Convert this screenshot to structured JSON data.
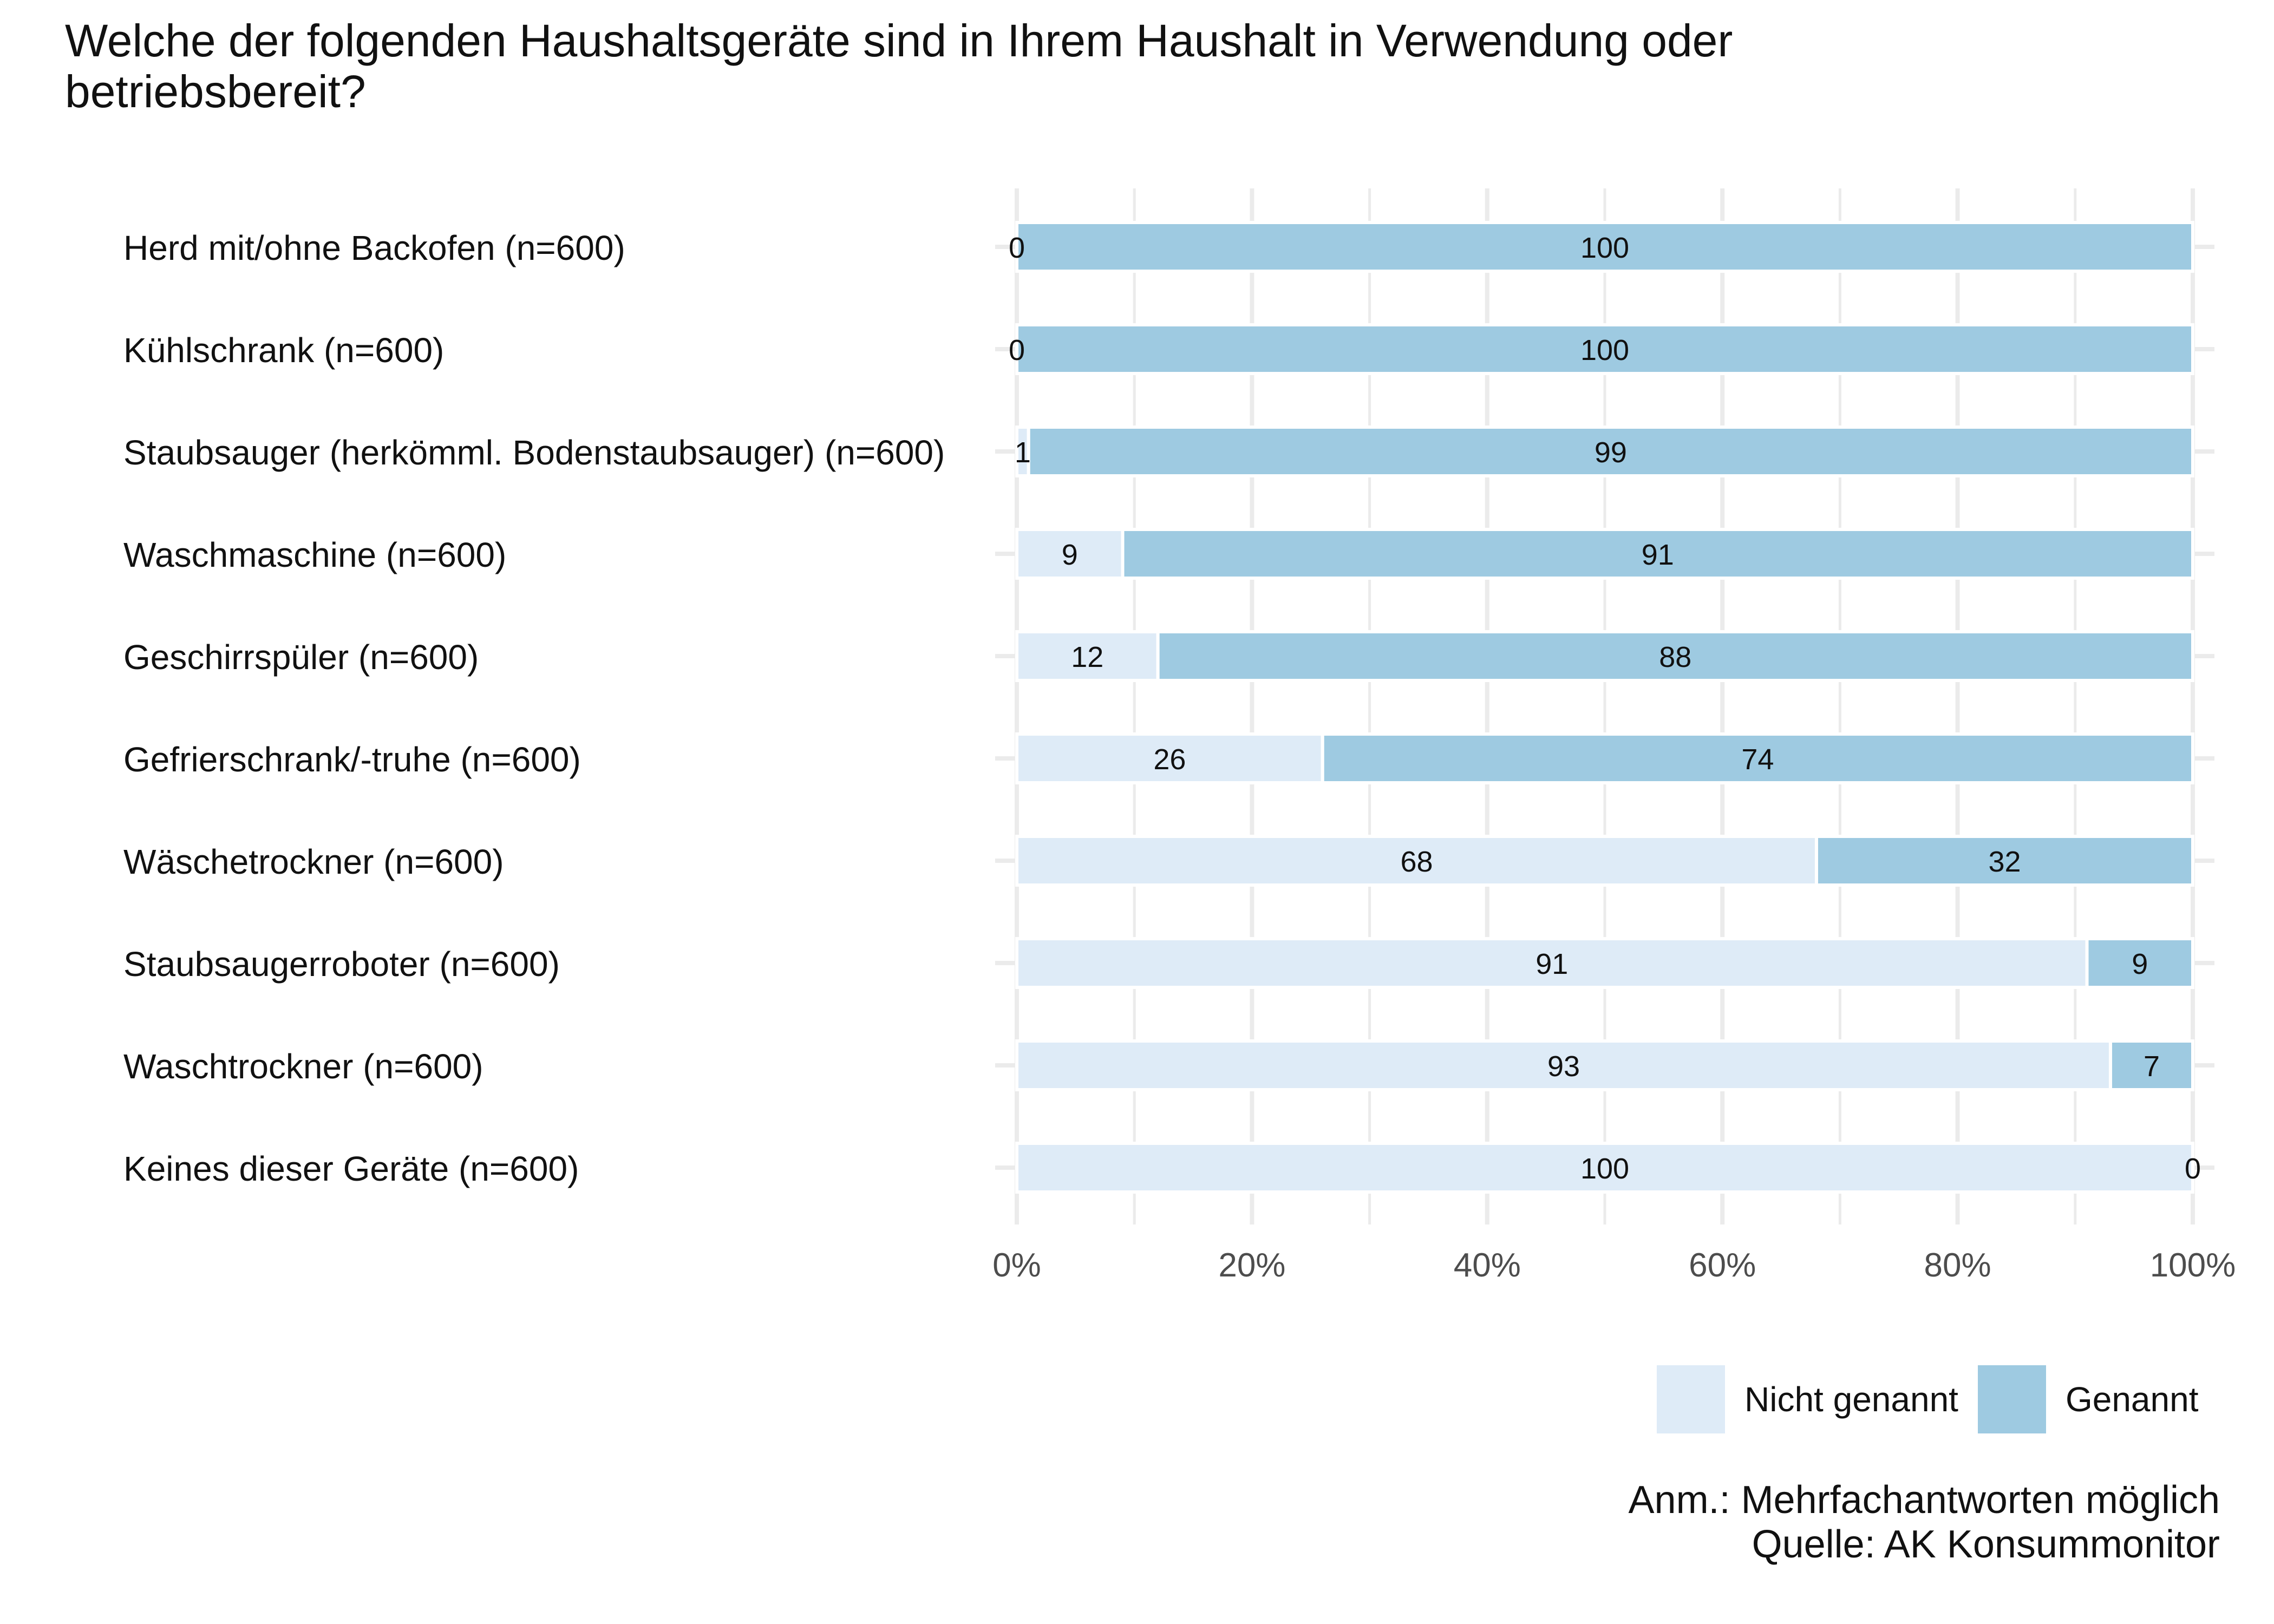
{
  "chart_data": {
    "type": "bar",
    "orientation": "horizontal",
    "stacked": true,
    "title": "Welche der folgenden Haushaltsgeräte sind in Ihrem Haushalt in Verwendung oder betriebsbereit?",
    "categories": [
      "Herd mit/ohne Backofen (n=600)",
      "Kühlschrank (n=600)",
      "Staubsauger (herkömml. Bodenstaubsauger) (n=600)",
      "Waschmaschine (n=600)",
      "Geschirrspüler (n=600)",
      "Gefrierschrank/-truhe (n=600)",
      "Wäschetrockner (n=600)",
      "Staubsaugerroboter (n=600)",
      "Waschtrockner (n=600)",
      "Keines dieser Geräte (n=600)"
    ],
    "series": [
      {
        "name": "Nicht genannt",
        "color": "#deebf7",
        "values": [
          0,
          0,
          1,
          9,
          12,
          26,
          68,
          91,
          93,
          100
        ]
      },
      {
        "name": "Genannt",
        "color": "#9ecae1",
        "values": [
          100,
          100,
          99,
          91,
          88,
          74,
          32,
          9,
          7,
          0
        ]
      }
    ],
    "xlim": [
      0,
      100
    ],
    "xticks": [
      0,
      20,
      40,
      60,
      80,
      100
    ],
    "xtick_labels": [
      "0%",
      "20%",
      "40%",
      "60%",
      "80%",
      "100%"
    ],
    "xlabel": "",
    "ylabel": "",
    "grid": true,
    "legend_position": "bottom-right"
  },
  "caption": {
    "note": "Anm.: Mehrfachantworten möglich",
    "source": "Quelle: AK Konsummonitor"
  },
  "legend": {
    "items": [
      "Nicht genannt",
      "Genannt"
    ]
  },
  "colors": {
    "nicht_genannt": "#deebf7",
    "genannt": "#9ecae1",
    "grid": "#ebebeb",
    "tick_text": "#4d4d4d"
  }
}
